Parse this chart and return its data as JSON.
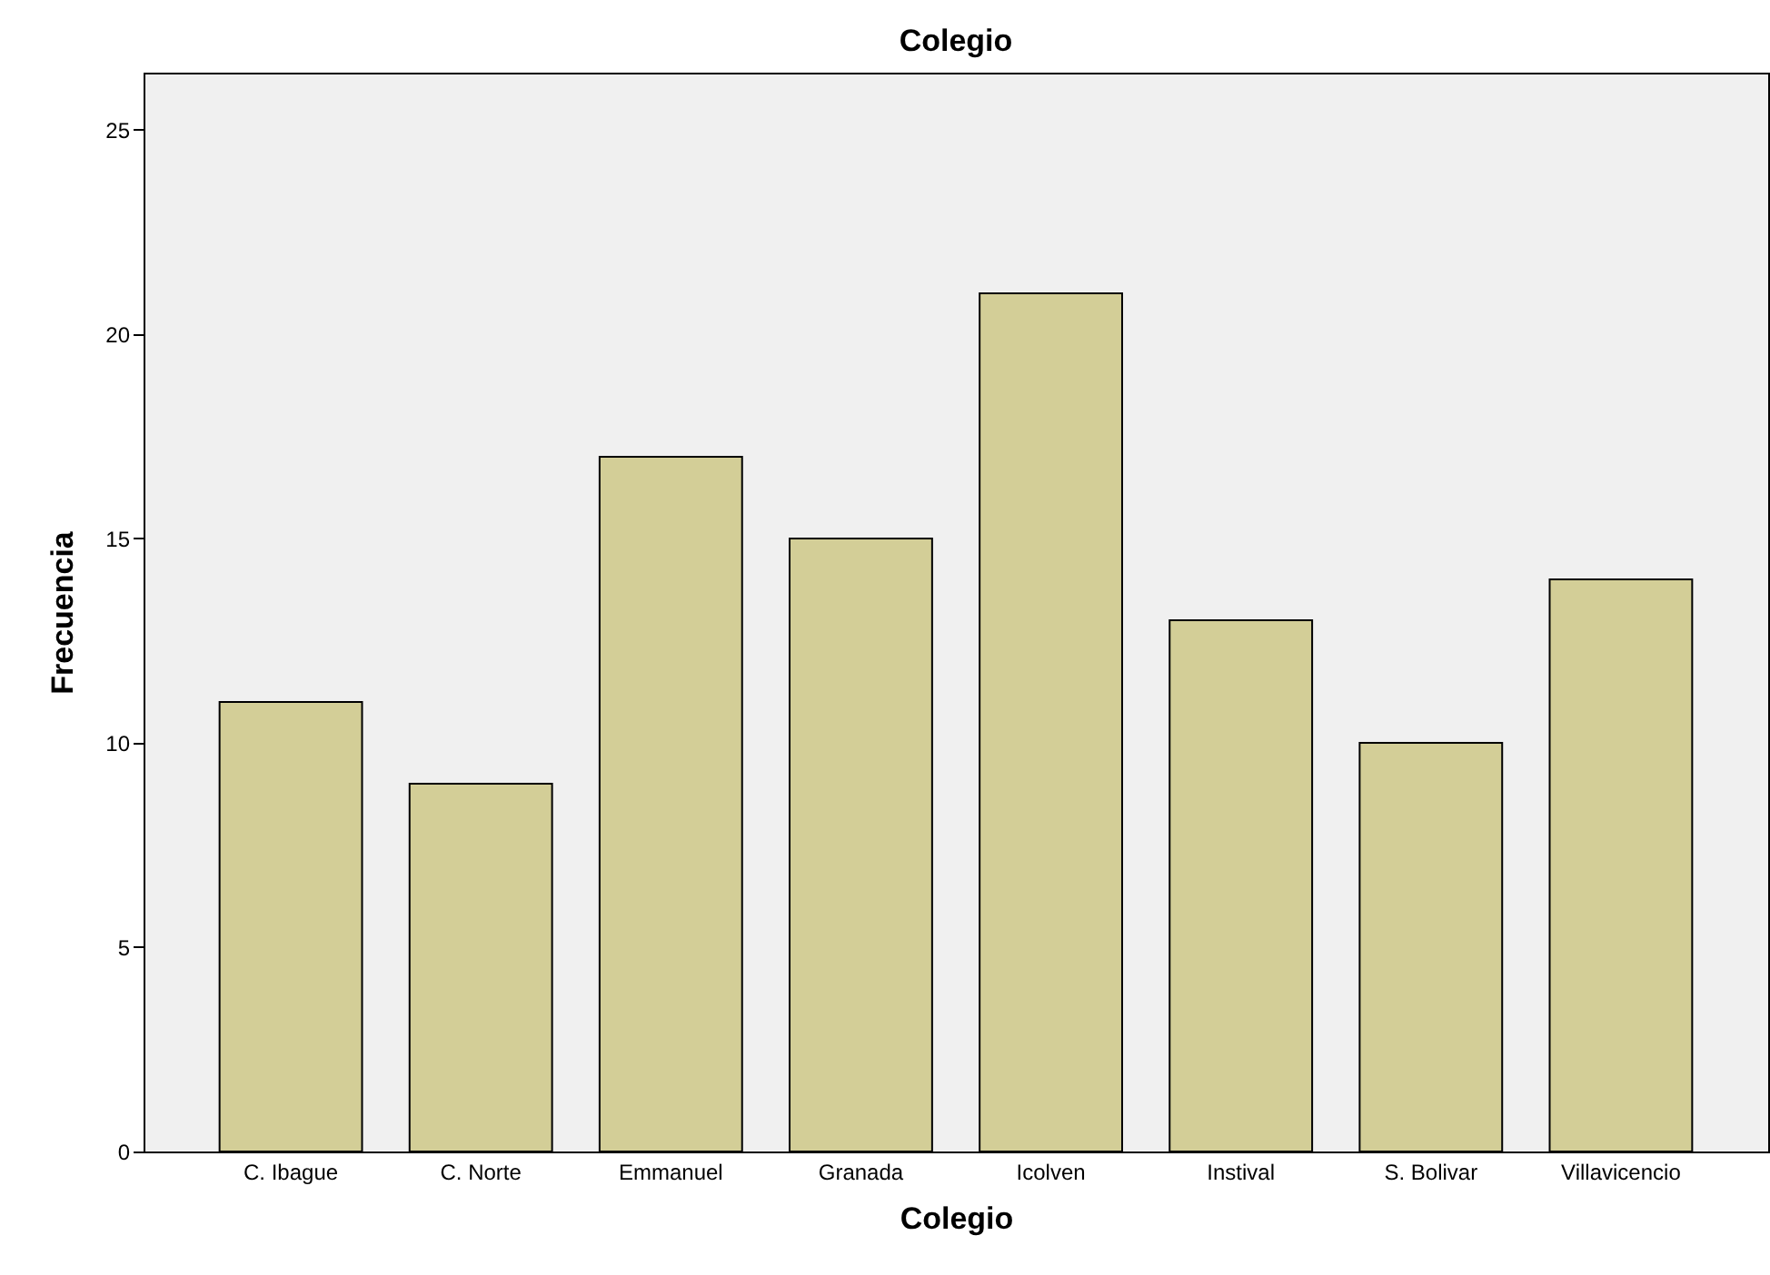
{
  "chart_data": {
    "type": "bar",
    "title": "Colegio",
    "xlabel": "Colegio",
    "ylabel": "Frecuencia",
    "categories": [
      "C. Ibague",
      "C. Norte",
      "Emmanuel",
      "Granada",
      "Icolven",
      "Instival",
      "S. Bolivar",
      "Villavicencio"
    ],
    "values": [
      11,
      9,
      17,
      15,
      21,
      13,
      10,
      14
    ],
    "color": "#d3ce97",
    "ylim": [
      0,
      26.4
    ],
    "yticks": [
      0,
      5,
      10,
      15,
      20,
      25
    ]
  }
}
